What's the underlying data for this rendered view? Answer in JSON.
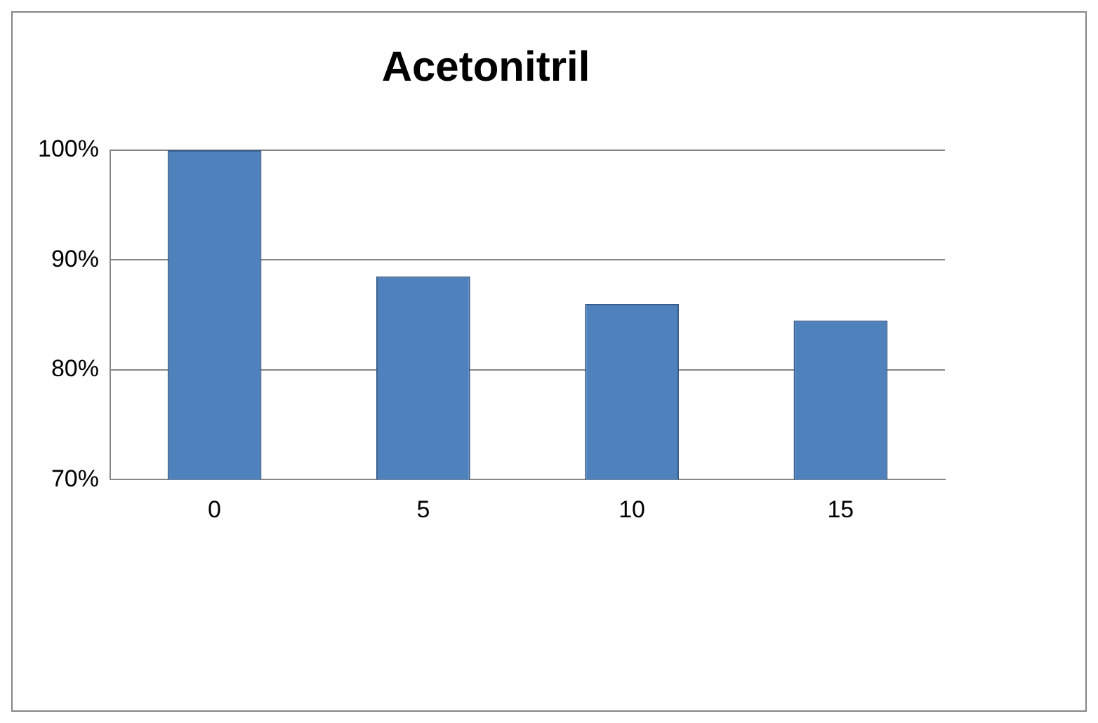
{
  "chart_data": {
    "type": "bar",
    "title": "Acetonitril",
    "categories": [
      "0",
      "5",
      "10",
      "15"
    ],
    "values": [
      100,
      88.5,
      86,
      84.5
    ],
    "color": "#4f81bd",
    "ylim": [
      70,
      100
    ],
    "yticks": [
      {
        "value": 70,
        "label": "70%"
      },
      {
        "value": 80,
        "label": "80%"
      },
      {
        "value": 90,
        "label": "90%"
      },
      {
        "value": 100,
        "label": "100%"
      }
    ],
    "grid": "y",
    "legend": false
  }
}
